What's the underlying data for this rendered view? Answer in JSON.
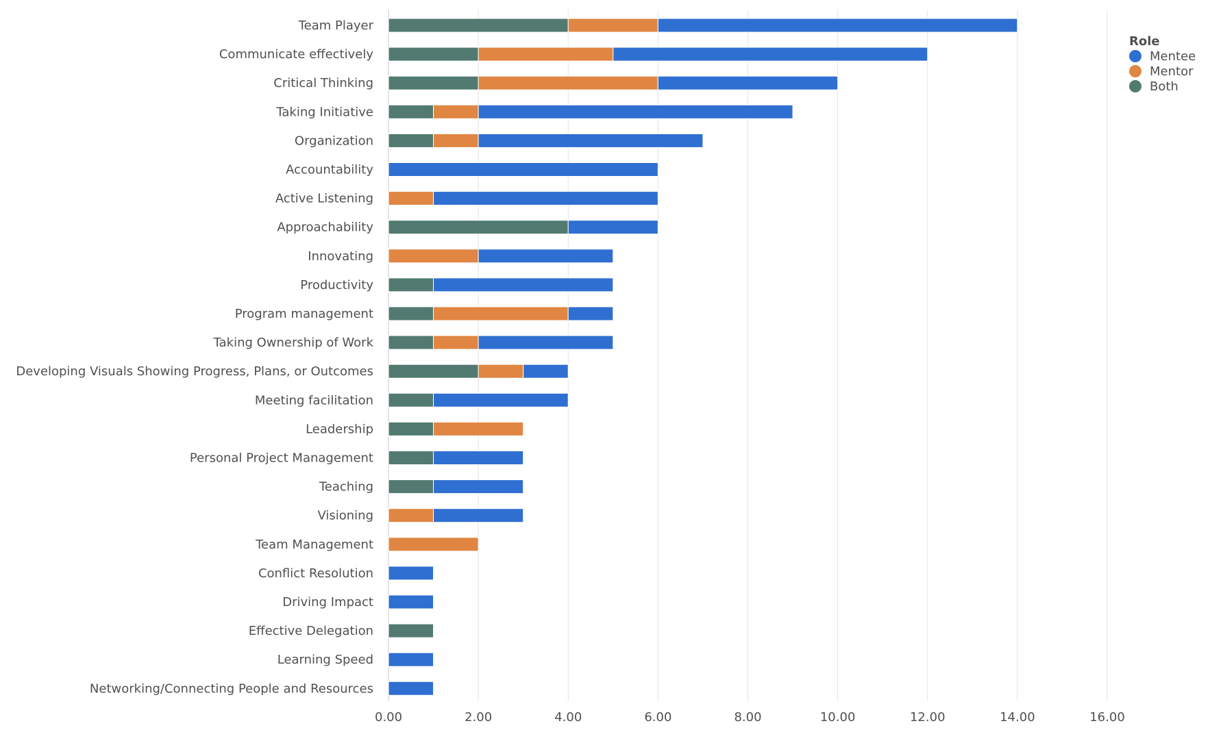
{
  "chart_data": {
    "type": "bar",
    "orientation": "horizontal",
    "stacked": true,
    "title": "",
    "xlabel": "",
    "ylabel": "",
    "xlim": [
      0,
      16
    ],
    "x_ticks": [
      "0.00",
      "2.00",
      "4.00",
      "6.00",
      "8.00",
      "10.00",
      "12.00",
      "14.00",
      "16.00"
    ],
    "grid": true,
    "legend": {
      "title": "Role",
      "position": "top-right"
    },
    "categories": [
      "Team Player",
      "Communicate effectively",
      "Critical Thinking",
      "Taking Initiative",
      "Organization",
      "Accountability",
      "Active Listening",
      "Approachability",
      "Innovating",
      "Productivity",
      "Program management",
      "Taking Ownership of Work",
      "Developing Visuals Showing Progress, Plans, or Outcomes",
      "Meeting facilitation",
      "Leadership",
      "Personal Project Management",
      "Teaching",
      "Visioning",
      "Team Management",
      "Conflict Resolution",
      "Driving Impact",
      "Effective Delegation",
      "Learning Speed",
      "Networking/Connecting People and Resources"
    ],
    "series": [
      {
        "name": "Both",
        "color": "#527a70",
        "values": [
          4,
          2,
          2,
          1,
          1,
          0,
          0,
          4,
          0,
          1,
          1,
          1,
          2,
          1,
          1,
          1,
          1,
          0,
          0,
          0,
          0,
          1,
          0,
          0
        ]
      },
      {
        "name": "Mentor",
        "color": "#e08642",
        "values": [
          2,
          3,
          4,
          1,
          1,
          0,
          1,
          0,
          2,
          0,
          3,
          1,
          1,
          0,
          2,
          0,
          0,
          1,
          2,
          0,
          0,
          0,
          0,
          0
        ]
      },
      {
        "name": "Mentee",
        "color": "#2f6fd1",
        "values": [
          8,
          7,
          4,
          7,
          5,
          6,
          5,
          2,
          3,
          4,
          1,
          3,
          1,
          3,
          0,
          2,
          2,
          2,
          0,
          1,
          1,
          0,
          1,
          1
        ]
      }
    ],
    "legend_order": [
      "Mentee",
      "Mentor",
      "Both"
    ]
  }
}
